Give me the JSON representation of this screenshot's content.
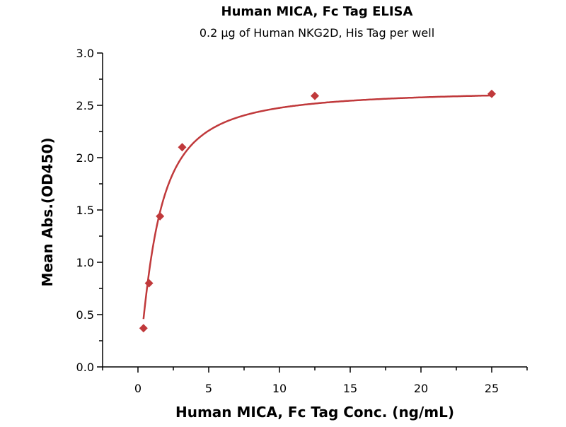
{
  "chart_data": {
    "type": "scatter",
    "title": "Human MICA, Fc Tag ELISA",
    "subtitle": "0.2 µg of Human NKG2D, His Tag per well",
    "xlabel": "Human MICA, Fc Tag Conc. (ng/mL)",
    "ylabel": "Mean Abs.(OD450)",
    "xlim": [
      -2.5,
      27.5
    ],
    "ylim": [
      0,
      3.0
    ],
    "xticks": [
      "0",
      "5",
      "10",
      "15",
      "20",
      "25"
    ],
    "yticks": [
      "0.0",
      "0.5",
      "1.0",
      "1.5",
      "2.0",
      "2.5",
      "3.0"
    ],
    "grid": false,
    "color": "#c0393b",
    "points": [
      {
        "x": 0.39,
        "y": 0.37
      },
      {
        "x": 0.78,
        "y": 0.8
      },
      {
        "x": 1.56,
        "y": 1.44
      },
      {
        "x": 3.125,
        "y": 2.1
      },
      {
        "x": 12.5,
        "y": 2.59
      },
      {
        "x": 25,
        "y": 2.61
      }
    ],
    "fit": "fitted curve"
  }
}
